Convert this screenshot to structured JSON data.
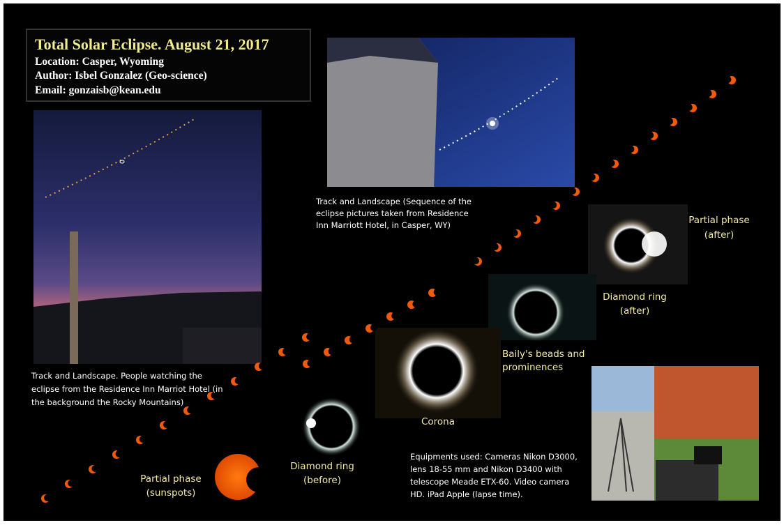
{
  "header": {
    "title": "Total Solar Eclipse. August 21,  2017",
    "lines": [
      "Location: Casper, Wyoming",
      "Author: Isbel Gonzalez (Geo-science)",
      "Email: gonzaisb@kean.edu"
    ]
  },
  "captions": {
    "track_top": [
      "Track and Landscape (Sequence of the",
      "eclipse pictures taken from Residence",
      "Inn Marriott Hotel, in Casper, WY)"
    ],
    "track_left": [
      "Track and Landscape. People watching the",
      "eclipse from the Residence Inn Marriot Hotel (in",
      "the background the Rocky Mountains)"
    ],
    "partial_after": [
      "Partial phase",
      "(after)"
    ],
    "diamond_after": [
      "Diamond ring",
      "(after)"
    ],
    "bailys": [
      "Baily's beads and",
      "prominences"
    ],
    "corona": [
      "Corona"
    ],
    "diamond_before": [
      "Diamond ring",
      "(before)"
    ],
    "partial_sunspots": [
      "Partial phase",
      "(sunspots)"
    ],
    "equipment": [
      "Equipments used: Cameras Nikon D3000,",
      "lens 18-55 mm and Nikon D3400 with",
      "telescope Meade ETX-60. Video camera",
      "HD. iPad Apple (lapse time)."
    ]
  }
}
